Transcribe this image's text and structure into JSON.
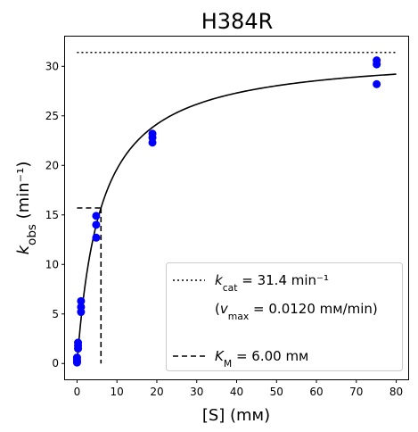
{
  "chart_data": {
    "type": "scatter",
    "title": "H384R",
    "xlabel": "[S] (mм)",
    "ylabel": "k_obs (min⁻¹)",
    "xlim": [
      -3,
      83
    ],
    "ylim": [
      -1.6,
      33.0
    ],
    "xticks": [
      0,
      10,
      20,
      30,
      40,
      50,
      60,
      70,
      80
    ],
    "yticks": [
      0,
      5,
      10,
      15,
      20,
      25,
      30
    ],
    "grid": false,
    "legend_position": "lower-right",
    "colors": {
      "points": "#0000ff",
      "lines": "#000000"
    },
    "points": [
      {
        "x": 0,
        "y": 0.1
      },
      {
        "x": 0,
        "y": 0.2
      },
      {
        "x": 0,
        "y": 0.4
      },
      {
        "x": 0,
        "y": 0.6
      },
      {
        "x": 0.25,
        "y": 1.5
      },
      {
        "x": 0.25,
        "y": 1.8
      },
      {
        "x": 0.25,
        "y": 2.1
      },
      {
        "x": 1.0,
        "y": 5.2
      },
      {
        "x": 1.0,
        "y": 5.7
      },
      {
        "x": 1.0,
        "y": 6.3
      },
      {
        "x": 4.8,
        "y": 12.7
      },
      {
        "x": 4.8,
        "y": 14.0
      },
      {
        "x": 4.8,
        "y": 14.9
      },
      {
        "x": 18.9,
        "y": 22.3
      },
      {
        "x": 18.9,
        "y": 22.8
      },
      {
        "x": 18.9,
        "y": 23.2
      },
      {
        "x": 75.1,
        "y": 28.2
      },
      {
        "x": 75.1,
        "y": 30.2
      },
      {
        "x": 75.1,
        "y": 30.6
      }
    ],
    "fit": {
      "model": "michaelis-menten",
      "kcat": 31.4,
      "km": 6.0,
      "x_range": [
        0,
        80
      ]
    },
    "kcat_line": {
      "y": 31.4,
      "x_range": [
        0,
        80
      ]
    },
    "km_lines": {
      "x": 6.0,
      "y": 15.7
    },
    "legend": {
      "kcat_label": "k_cat = 31.4 min⁻¹",
      "vmax_label": "(v_max = 0.0120 mм/min)",
      "km_label": "K_M = 6.00 mм"
    }
  }
}
